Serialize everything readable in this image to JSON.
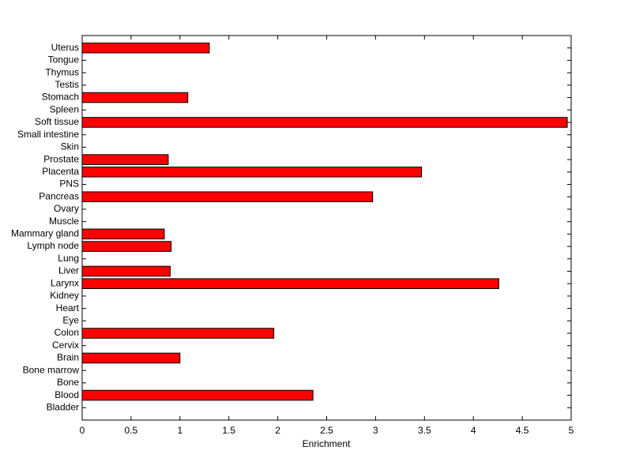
{
  "chart_data": {
    "type": "barh",
    "xlabel": "Enrichment",
    "categories": [
      "Bladder",
      "Blood",
      "Bone",
      "Bone marrow",
      "Brain",
      "Cervix",
      "Colon",
      "Eye",
      "Heart",
      "Kidney",
      "Larynx",
      "Liver",
      "Lung",
      "Lymph node",
      "Mammary gland",
      "Muscle",
      "Ovary",
      "Pancreas",
      "PNS",
      "Placenta",
      "Prostate",
      "Skin",
      "Small intestine",
      "Soft tissue",
      "Spleen",
      "Stomach",
      "Testis",
      "Thymus",
      "Tongue",
      "Uterus"
    ],
    "values": [
      0,
      2.36,
      0,
      0,
      1.0,
      0,
      1.96,
      0,
      0,
      0,
      4.26,
      0.9,
      0,
      0.91,
      0.84,
      0,
      0,
      2.97,
      0,
      3.47,
      0.88,
      0,
      0,
      4.96,
      0,
      1.08,
      0,
      0,
      0,
      1.3
    ],
    "color": "#ff0000",
    "xlim": [
      0,
      5
    ],
    "xticks": [
      0,
      0.5,
      1,
      1.5,
      2,
      2.5,
      3,
      3.5,
      4,
      4.5,
      5
    ]
  }
}
